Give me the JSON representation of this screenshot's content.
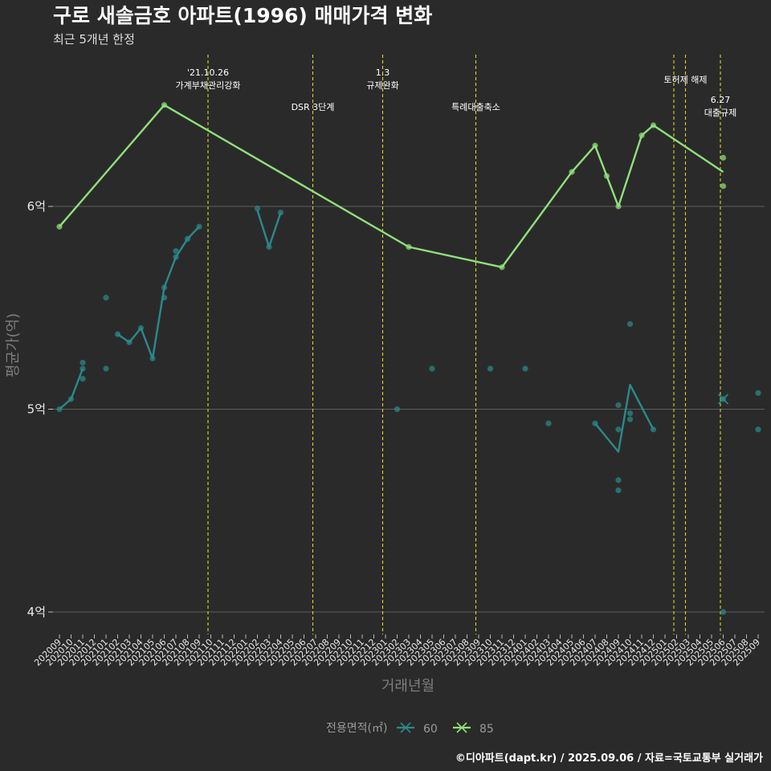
{
  "chart_data": {
    "type": "line",
    "title": "구로 새솔금호 아파트(1996) 매매가격 변화",
    "subtitle": "최근 5개년 한정",
    "caption": "©디아파트(dapt.kr) / 2025.09.06 / 자료=국토교통부 실거래가",
    "xlabel": "거래년월",
    "ylabel": "평균가(억)",
    "ylim": [
      3.9,
      6.75
    ],
    "yticks": [
      {
        "value": 4,
        "label": "4억"
      },
      {
        "value": 5,
        "label": "5억"
      },
      {
        "value": 6,
        "label": "6억"
      }
    ],
    "grid": true,
    "legend": {
      "title": "전용면적(㎡)",
      "position": "bottom"
    },
    "months": [
      "202009",
      "202010",
      "202011",
      "202012",
      "202101",
      "202102",
      "202103",
      "202104",
      "202105",
      "202106",
      "202107",
      "202108",
      "202109",
      "202110",
      "202111",
      "202112",
      "202201",
      "202202",
      "202203",
      "202204",
      "202205",
      "202206",
      "202207",
      "202208",
      "202209",
      "202210",
      "202211",
      "202212",
      "202301",
      "202302",
      "202303",
      "202304",
      "202305",
      "202306",
      "202307",
      "202308",
      "202309",
      "202310",
      "202311",
      "202312",
      "202401",
      "202402",
      "202403",
      "202404",
      "202405",
      "202406",
      "202407",
      "202408",
      "202409",
      "202410",
      "202411",
      "202412",
      "202501",
      "202502",
      "202503",
      "202504",
      "202505",
      "202506",
      "202507",
      "202508",
      "202509"
    ],
    "events": [
      {
        "x": "202110",
        "lines": [
          "'21.10.26",
          "가계부채관리강화"
        ],
        "level": 0
      },
      {
        "x": "202207",
        "lines": [
          "DSR 3단계"
        ],
        "level": 2
      },
      {
        "x": "202301",
        "lines": [
          "1.3",
          "규제완화"
        ],
        "level": 0
      },
      {
        "x": "202309",
        "lines": [
          "특례대출축소"
        ],
        "level": 2
      },
      {
        "x": "202502",
        "lines": [],
        "level": 0
      },
      {
        "x": "202503",
        "lines": [
          "토허제 해제"
        ],
        "level": 1
      },
      {
        "x": "202506",
        "lines": [
          "6.27",
          "대출규제"
        ],
        "level": 3
      }
    ],
    "series": [
      {
        "name": "60",
        "color": "#2a8a8a",
        "line_segments": [
          [
            [
              "202009",
              5.0
            ],
            [
              "202010",
              5.05
            ],
            [
              "202011",
              5.2
            ]
          ],
          [
            [
              "202102",
              5.37
            ],
            [
              "202103",
              5.33
            ],
            [
              "202104",
              5.4
            ],
            [
              "202105",
              5.25
            ],
            [
              "202106",
              5.6
            ],
            [
              "202107",
              5.75
            ],
            [
              "202108",
              5.84
            ],
            [
              "202109",
              5.9
            ]
          ],
          [
            [
              "202202",
              5.98
            ],
            [
              "202203",
              5.8
            ],
            [
              "202204",
              5.97
            ]
          ],
          [
            [
              "202407",
              4.93
            ],
            [
              "202409",
              4.79
            ],
            [
              "202410",
              5.12
            ],
            [
              "202412",
              4.9
            ]
          ]
        ],
        "points": [
          [
            "202009",
            5.0
          ],
          [
            "202010",
            5.05
          ],
          [
            "202011",
            5.15
          ],
          [
            "202011",
            5.2
          ],
          [
            "202011",
            5.23
          ],
          [
            "202101",
            5.2
          ],
          [
            "202101",
            5.55
          ],
          [
            "202102",
            5.37
          ],
          [
            "202103",
            5.33
          ],
          [
            "202104",
            5.4
          ],
          [
            "202105",
            5.25
          ],
          [
            "202106",
            5.55
          ],
          [
            "202106",
            5.6
          ],
          [
            "202107",
            5.75
          ],
          [
            "202107",
            5.78
          ],
          [
            "202108",
            5.84
          ],
          [
            "202109",
            5.9
          ],
          [
            "202202",
            5.99
          ],
          [
            "202203",
            5.8
          ],
          [
            "202204",
            5.97
          ],
          [
            "202302",
            5.0
          ],
          [
            "202305",
            5.2
          ],
          [
            "202310",
            5.2
          ],
          [
            "202401",
            5.2
          ],
          [
            "202403",
            4.93
          ],
          [
            "202407",
            4.93
          ],
          [
            "202409",
            4.6
          ],
          [
            "202409",
            4.65
          ],
          [
            "202409",
            4.9
          ],
          [
            "202409",
            5.02
          ],
          [
            "202410",
            4.95
          ],
          [
            "202410",
            4.98
          ],
          [
            "202410",
            5.42
          ],
          [
            "202412",
            4.9
          ],
          [
            "202506",
            4.0
          ],
          [
            "202506",
            5.05
          ],
          [
            "202509",
            4.9
          ],
          [
            "202509",
            5.08
          ]
        ]
      },
      {
        "name": "85",
        "color": "#90e07a",
        "line_segments": [
          [
            [
              "202009",
              5.9
            ],
            [
              "202106",
              6.5
            ],
            [
              "202303",
              5.8
            ],
            [
              "202311",
              5.7
            ],
            [
              "202405",
              6.17
            ],
            [
              "202407",
              6.3
            ],
            [
              "202408",
              6.15
            ],
            [
              "202409",
              6.0
            ],
            [
              "202411",
              6.35
            ],
            [
              "202412",
              6.4
            ],
            [
              "202506",
              6.17
            ]
          ]
        ],
        "points": [
          [
            "202009",
            5.9
          ],
          [
            "202106",
            6.5
          ],
          [
            "202303",
            5.8
          ],
          [
            "202311",
            5.7
          ],
          [
            "202405",
            6.17
          ],
          [
            "202407",
            6.3
          ],
          [
            "202408",
            6.15
          ],
          [
            "202409",
            6.0
          ],
          [
            "202411",
            6.35
          ],
          [
            "202412",
            6.4
          ],
          [
            "202506",
            6.1
          ],
          [
            "202506",
            6.24
          ]
        ]
      }
    ]
  }
}
